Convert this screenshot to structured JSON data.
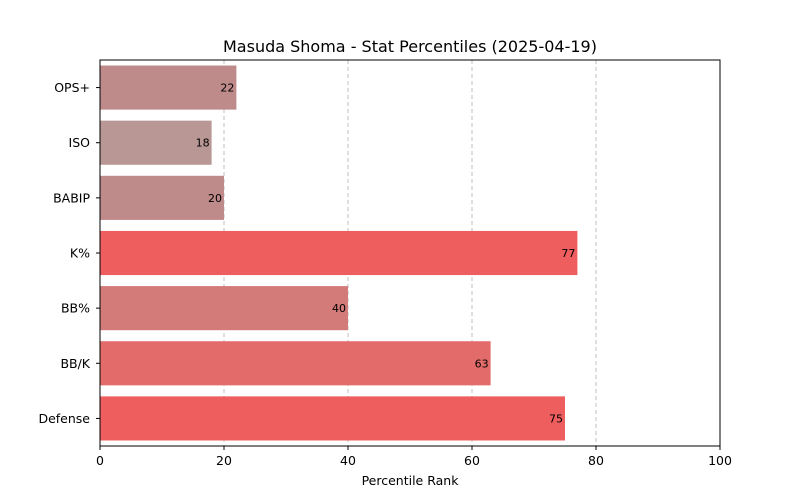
{
  "chart_data": {
    "type": "bar",
    "orientation": "horizontal",
    "title": "Masuda Shoma - Stat Percentiles (2025-04-19)",
    "xlabel": "Percentile Rank",
    "ylabel": "",
    "xlim": [
      0,
      100
    ],
    "x_ticks": [
      0,
      20,
      40,
      60,
      80,
      100
    ],
    "grid": "x-axis dashed",
    "categories": [
      "OPS+",
      "ISO",
      "BABIP",
      "K%",
      "BB%",
      "BB/K",
      "Defense"
    ],
    "values": [
      22,
      18,
      20,
      77,
      40,
      63,
      75
    ],
    "colors": [
      "#be8a8a",
      "#b89794",
      "#be8a8a",
      "#ee5e5e",
      "#d27b78",
      "#e36b69",
      "#ee5e5e"
    ]
  }
}
